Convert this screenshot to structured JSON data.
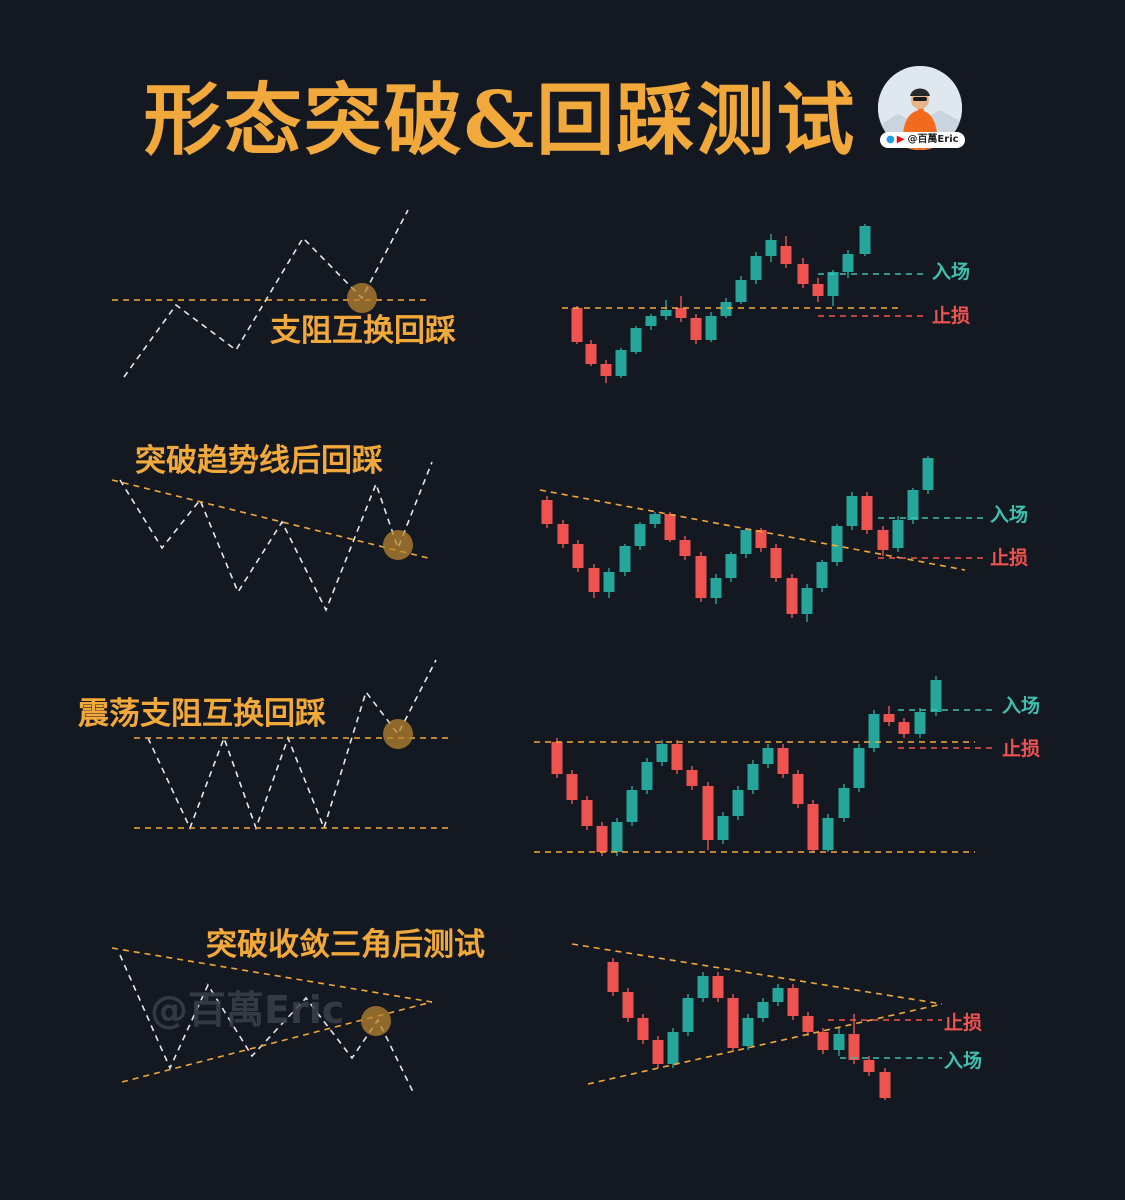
{
  "title": "形态突破&回踩测试",
  "author_handle": "@百萬Eric",
  "watermark": "@百萬Eric",
  "colors": {
    "background": "#141821",
    "accent": "#f2a93b",
    "bull": "#26a69a",
    "bear": "#ef5350",
    "entry": "#3fbfae",
    "stop": "#ef5350"
  },
  "panels": [
    {
      "label": "支阻互换回踩",
      "entry": "入场",
      "stop": "止损"
    },
    {
      "label": "突破趋势线后回踩",
      "entry": "入场",
      "stop": "止损"
    },
    {
      "label": "震荡支阻互换回踩",
      "entry": "入场",
      "stop": "止损"
    },
    {
      "label": "突破收敛三角后测试",
      "entry": "入场",
      "stop": "止损"
    }
  ]
}
